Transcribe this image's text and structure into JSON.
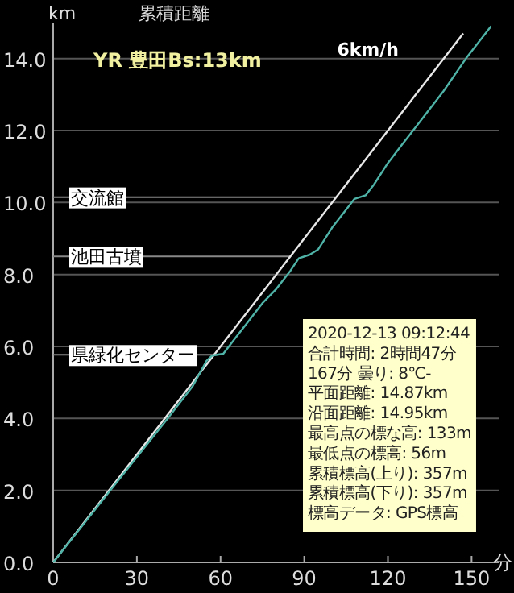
{
  "chart_data": {
    "type": "line",
    "title": "累積距離",
    "subtitle": "YR 豊田Bs:13km",
    "xlabel": "分",
    "ylabel": "km",
    "xlim": [
      0,
      160
    ],
    "ylim": [
      0,
      15
    ],
    "xticks": [
      0,
      30,
      60,
      90,
      120,
      150
    ],
    "yticks": [
      {
        "value": 0,
        "label": "0.0"
      },
      {
        "value": 2,
        "label": "2.0"
      },
      {
        "value": 4,
        "label": "4.0"
      },
      {
        "value": 6,
        "label": "6.0"
      },
      {
        "value": 8,
        "label": "8.0"
      },
      {
        "value": 10,
        "label": "10.0"
      },
      {
        "value": 12,
        "label": "12.0"
      },
      {
        "value": 14,
        "label": "14.0"
      }
    ],
    "grid": "y",
    "marker": "none",
    "line_style": "solid",
    "series": [
      {
        "name": "6km/h",
        "color": "#e8e8e8",
        "x": [
          0,
          147
        ],
        "values": [
          0,
          14.7
        ]
      },
      {
        "color": "#4fb3a8",
        "x": [
          0,
          20,
          40,
          50,
          55,
          57,
          61,
          65,
          70,
          75,
          80,
          85,
          88,
          92,
          95,
          100,
          105,
          108,
          112,
          115,
          120,
          125,
          130,
          140,
          148,
          157
        ],
        "values": [
          0,
          1.95,
          3.9,
          4.9,
          5.6,
          5.75,
          5.8,
          6.2,
          6.7,
          7.2,
          7.6,
          8.1,
          8.45,
          8.55,
          8.7,
          9.3,
          9.8,
          10.1,
          10.2,
          10.5,
          11.1,
          11.6,
          12.1,
          13.1,
          14.0,
          14.9
        ]
      }
    ],
    "ref_lines": [
      {
        "axis": "y",
        "value": 10.15,
        "label": "交流館",
        "color": "#888888"
      },
      {
        "axis": "y",
        "value": 8.5,
        "label": "池田古墳",
        "color": "#888888"
      },
      {
        "axis": "y",
        "value": 5.77,
        "label": "県緑化センター",
        "color": "#888888"
      }
    ],
    "annotations": [
      "2020-12-13 09:12:44",
      "合計時間: 2時間47分",
      "167分 曇り: 8℃-",
      "平面距離: 14.87km",
      "沿面距離: 14.95km",
      "最高点の標な高: 133m",
      "最低点の標高: 56m",
      "累積標高(上り): 357m",
      "累積標高(下り): 357m",
      "標高データ: GPS標高"
    ]
  }
}
